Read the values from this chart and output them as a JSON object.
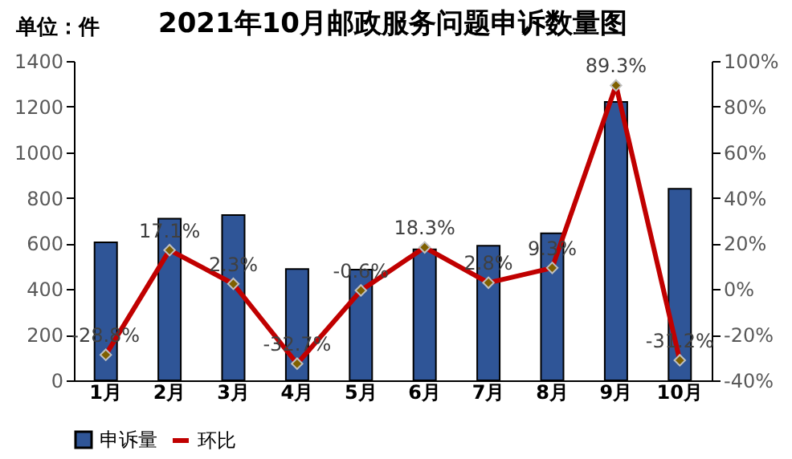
{
  "chart_data": {
    "type": "bar",
    "title": "2021年10月邮政服务问题申诉数量图",
    "annotations": [
      "单位：件"
    ],
    "categories": [
      "1月",
      "2月",
      "3月",
      "4月",
      "5月",
      "6月",
      "7月",
      "8月",
      "9月",
      "10月"
    ],
    "series": [
      {
        "name": "申诉量",
        "color": "#2f5597",
        "values": [
          605,
          709,
          725,
          488,
          485,
          574,
          590,
          645,
          1221,
          840
        ]
      },
      {
        "name": "环比",
        "type": "line",
        "axis": "y2",
        "color": "#c00000",
        "values": [
          -28.8,
          17.1,
          2.3,
          -32.7,
          -0.6,
          18.3,
          2.8,
          9.3,
          89.3,
          -31.2
        ],
        "value_labels": [
          "-28.8%",
          "17.1%",
          "2.3%",
          "-32.7%",
          "-0.6%",
          "18.3%",
          "2.8%",
          "9.3%",
          "89.3%",
          "-31.2%"
        ]
      }
    ],
    "ylim": [
      0,
      1400
    ],
    "yticks": [
      0,
      200,
      400,
      600,
      800,
      1000,
      1200,
      1400
    ],
    "y2lim": [
      -40,
      100
    ],
    "y2ticks": [
      {
        "value": -40,
        "label": "-40%"
      },
      {
        "value": -20,
        "label": "-20%"
      },
      {
        "value": 0,
        "label": "0%"
      },
      {
        "value": 20,
        "label": "20%"
      },
      {
        "value": 40,
        "label": "40%"
      },
      {
        "value": 60,
        "label": "60%"
      },
      {
        "value": 80,
        "label": "80%"
      },
      {
        "value": 100,
        "label": "100%"
      }
    ],
    "legend": "bottom",
    "marker": "diamond",
    "line_style": "solid"
  }
}
